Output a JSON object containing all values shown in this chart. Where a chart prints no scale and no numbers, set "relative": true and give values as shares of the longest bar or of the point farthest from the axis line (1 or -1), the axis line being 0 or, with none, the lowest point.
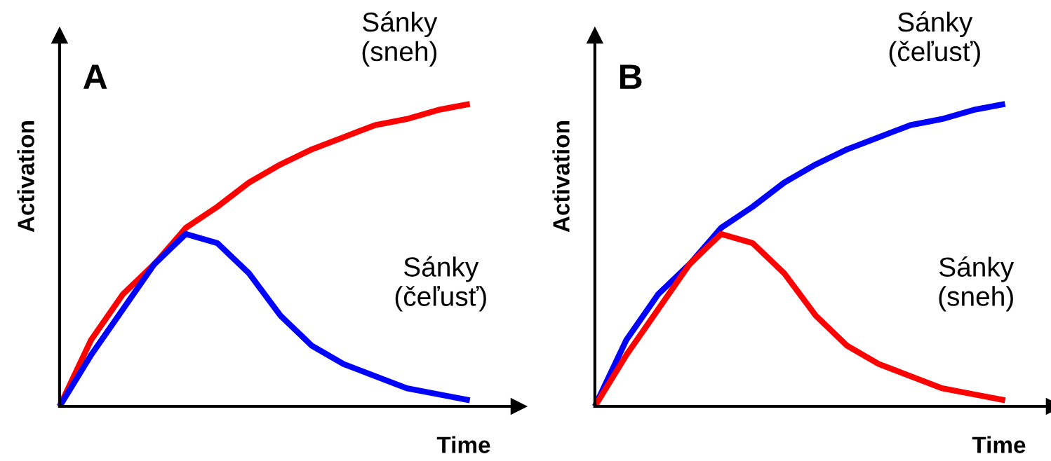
{
  "chart_data": [
    {
      "type": "line",
      "title": "A",
      "xlabel": "Time",
      "ylabel": "Activation",
      "relative": true,
      "legend": false,
      "grid": false,
      "categories": [
        null,
        null,
        null,
        null,
        null,
        null,
        null,
        null,
        null,
        null,
        null,
        null,
        null,
        null
      ],
      "series": [
        {
          "name": "Sánky\n(sneh)",
          "color": "#ff0000",
          "values": [
            0,
            0.22,
            0.37,
            0.47,
            0.59,
            0.66,
            0.74,
            0.8,
            0.85,
            0.89,
            0.93,
            0.95,
            0.98,
            1
          ]
        },
        {
          "name": "Sánky\n(čeľusť)",
          "color": "#0000ff",
          "values": [
            0,
            0.17,
            0.32,
            0.47,
            0.57,
            0.54,
            0.44,
            0.3,
            0.2,
            0.14,
            0.1,
            0.06,
            0.04,
            0.02
          ]
        }
      ]
    },
    {
      "type": "line",
      "title": "B",
      "xlabel": "Time",
      "ylabel": "Activation",
      "relative": true,
      "legend": false,
      "grid": false,
      "categories": [
        null,
        null,
        null,
        null,
        null,
        null,
        null,
        null,
        null,
        null,
        null,
        null,
        null,
        null
      ],
      "series": [
        {
          "name": "Sánky\n(čeľusť)",
          "color": "#0000ff",
          "values": [
            0,
            0.22,
            0.37,
            0.47,
            0.59,
            0.66,
            0.74,
            0.8,
            0.85,
            0.89,
            0.93,
            0.95,
            0.98,
            1
          ]
        },
        {
          "name": "Sánky\n(sneh)",
          "color": "#ff0000",
          "values": [
            0,
            0.17,
            0.32,
            0.47,
            0.57,
            0.54,
            0.44,
            0.3,
            0.2,
            0.14,
            0.1,
            0.06,
            0.04,
            0.02
          ]
        }
      ]
    }
  ]
}
